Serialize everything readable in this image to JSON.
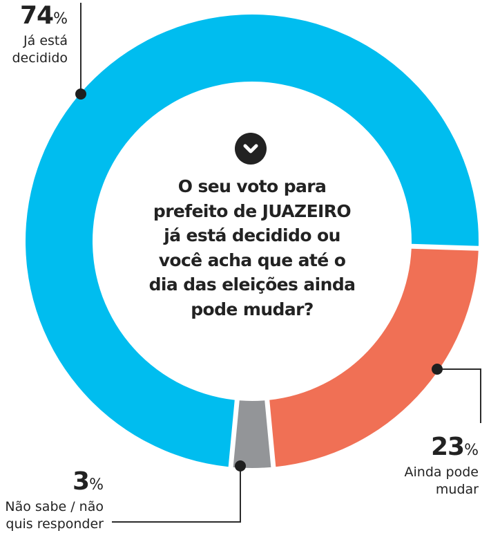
{
  "question": {
    "lines": [
      "O seu voto para",
      "prefeito de JUAZEIRO",
      "já está decidido ou",
      "você acha que até o",
      "dia das eleições ainda",
      "pode mudar?"
    ],
    "icon": "chevron-down-circle-icon"
  },
  "labels": {
    "decided": {
      "value": "74",
      "sign": "%",
      "desc_lines": [
        "Já está",
        "decidido"
      ]
    },
    "may_change": {
      "value": "23",
      "sign": "%",
      "desc_lines": [
        "Ainda pode",
        "mudar"
      ]
    },
    "unknown": {
      "value": "3",
      "sign": "%",
      "desc_lines": [
        "Não sabe / não",
        "quis responder"
      ]
    }
  },
  "colors": {
    "decided": "#00BDEF",
    "may_change": "#F07055",
    "unknown": "#939598",
    "text": "#222222",
    "leader": "#2a2a2a"
  },
  "chart_data": {
    "type": "pie",
    "variant": "donut",
    "title": "O seu voto para prefeito de JUAZEIRO já está decidido ou você acha que até o dia das eleições ainda pode mudar?",
    "categories": [
      "Já está decidido",
      "Ainda pode mudar",
      "Não sabe / não quis responder"
    ],
    "values": [
      74,
      23,
      3
    ],
    "unit": "%",
    "colors": [
      "#00BDEF",
      "#F07055",
      "#939598"
    ],
    "legend": "leader-line annotations"
  }
}
